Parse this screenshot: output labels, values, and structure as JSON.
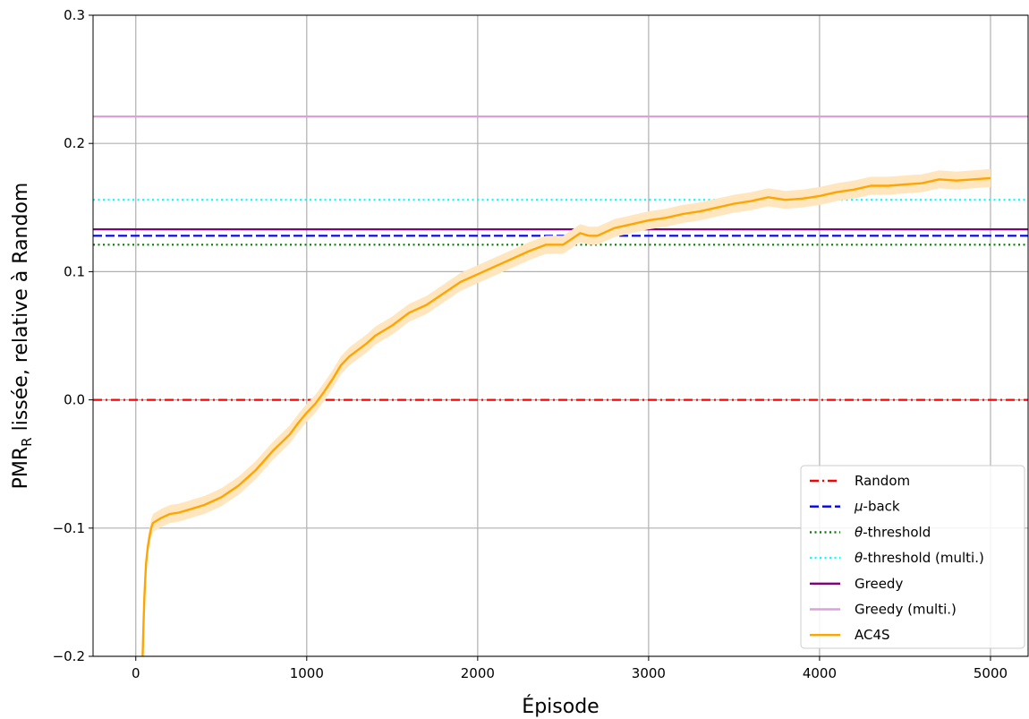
{
  "chart_data": {
    "type": "line",
    "xlabel": "Épisode",
    "ylabel": {
      "main": "PMR",
      "sub": "R",
      "rest": " lissée, relative à Random"
    },
    "xlim": [
      -250,
      5220
    ],
    "ylim": [
      -0.2,
      0.3
    ],
    "xticks": [
      0,
      1000,
      2000,
      3000,
      4000,
      5000
    ],
    "yticks": [
      -0.2,
      -0.1,
      0.0,
      0.1,
      0.2,
      0.3
    ],
    "xtick_labels": [
      "0",
      "1000",
      "2000",
      "3000",
      "4000",
      "5000"
    ],
    "ytick_labels": [
      "−0.2",
      "−0.1",
      "0.0",
      "0.1",
      "0.2",
      "0.3"
    ],
    "grid": true,
    "legend_position": "lower-right",
    "baselines": [
      {
        "name": "Random",
        "y": 0.0,
        "color": "#ff0000",
        "style": "dashdot"
      },
      {
        "name": "μ-back",
        "y": 0.128,
        "color": "#0000ff",
        "style": "dashed",
        "italic_prefix": "μ",
        "suffix": "-back"
      },
      {
        "name": "θ-threshold",
        "y": 0.121,
        "color": "#008000",
        "style": "dotted",
        "italic_prefix": "θ",
        "suffix": "-threshold"
      },
      {
        "name": "θ-threshold (multi.)",
        "y": 0.156,
        "color": "#00ffff",
        "style": "dotted",
        "italic_prefix": "θ",
        "suffix": "-threshold (multi.)"
      },
      {
        "name": "Greedy",
        "y": 0.133,
        "color": "#800080",
        "style": "solid"
      },
      {
        "name": "Greedy (multi.)",
        "y": 0.221,
        "color": "#dda0dd",
        "style": "solid"
      }
    ],
    "series": [
      {
        "name": "AC4S",
        "color": "#ffa500",
        "band_color": "#ffe6bf",
        "band_width": 0.007,
        "x": [
          40,
          45,
          50,
          55,
          60,
          70,
          80,
          90,
          100,
          150,
          200,
          250,
          300,
          400,
          500,
          600,
          700,
          800,
          900,
          950,
          1000,
          1050,
          1100,
          1150,
          1200,
          1250,
          1300,
          1350,
          1400,
          1500,
          1600,
          1700,
          1800,
          1900,
          2000,
          2100,
          2200,
          2300,
          2400,
          2500,
          2600,
          2650,
          2700,
          2800,
          2900,
          3000,
          3100,
          3200,
          3300,
          3400,
          3500,
          3600,
          3700,
          3800,
          3900,
          4000,
          4100,
          4200,
          4300,
          4400,
          4500,
          4600,
          4700,
          4800,
          4900,
          5000
        ],
        "y": [
          -0.2,
          -0.175,
          -0.155,
          -0.14,
          -0.128,
          -0.115,
          -0.107,
          -0.1,
          -0.096,
          -0.092,
          -0.089,
          -0.088,
          -0.086,
          -0.082,
          -0.076,
          -0.067,
          -0.055,
          -0.04,
          -0.027,
          -0.018,
          -0.01,
          -0.003,
          0.006,
          0.016,
          0.027,
          0.034,
          0.039,
          0.044,
          0.05,
          0.058,
          0.068,
          0.074,
          0.083,
          0.092,
          0.098,
          0.104,
          0.11,
          0.116,
          0.121,
          0.121,
          0.13,
          0.128,
          0.128,
          0.134,
          0.137,
          0.14,
          0.142,
          0.145,
          0.147,
          0.15,
          0.153,
          0.155,
          0.158,
          0.156,
          0.157,
          0.159,
          0.162,
          0.164,
          0.167,
          0.167,
          0.168,
          0.169,
          0.172,
          0.171,
          0.172,
          0.173
        ]
      }
    ]
  }
}
